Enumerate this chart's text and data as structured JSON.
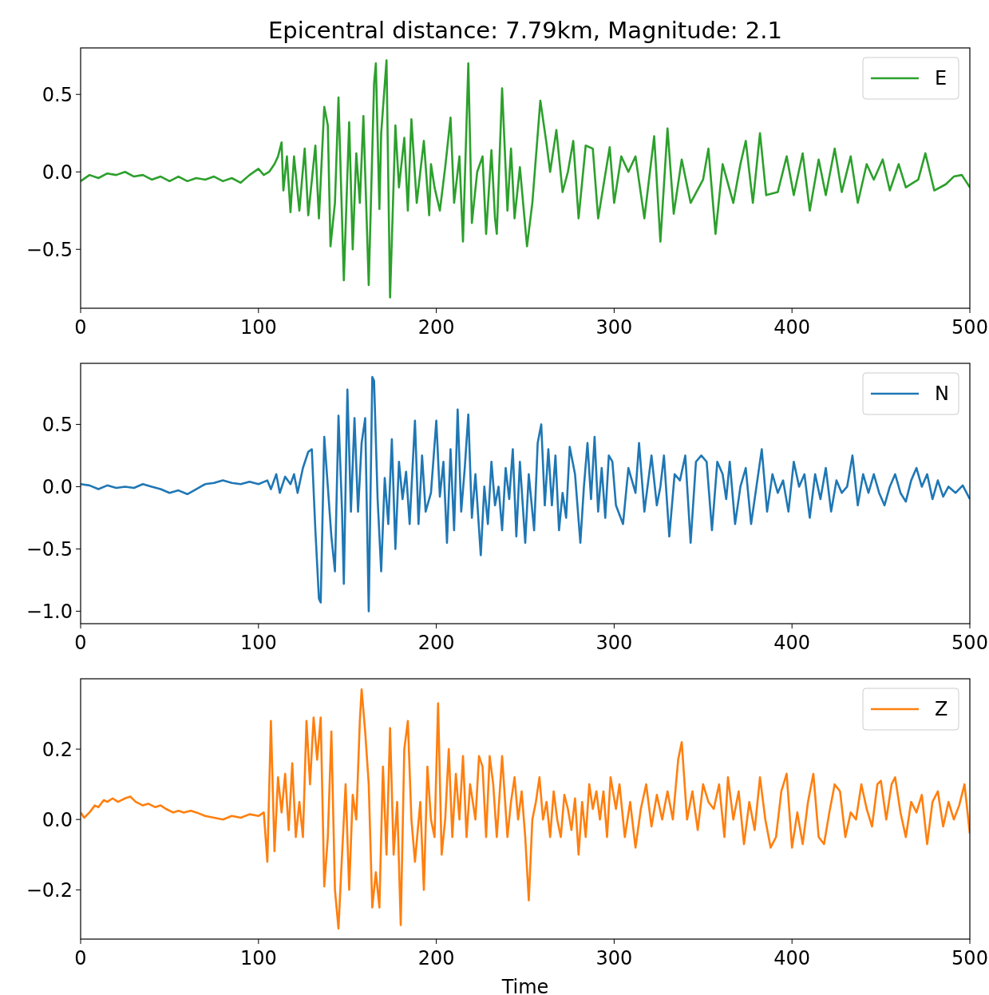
{
  "chart_data": [
    {
      "type": "line",
      "title": "Epicentral distance: 7.79km, Magnitude: 2.1",
      "xlim": [
        0,
        500
      ],
      "xticks": [
        0,
        100,
        200,
        300,
        400,
        500
      ],
      "ylim": [
        -0.88,
        0.8
      ],
      "yticks": [
        {
          "value": -0.5,
          "label": "−0.5"
        },
        {
          "value": 0,
          "label": "0.0"
        },
        {
          "value": 0.5,
          "label": "0.5"
        }
      ],
      "legend": "top right",
      "grid": false,
      "series": [
        {
          "name": "E",
          "color": "#2ca02c",
          "x": [
            0,
            5,
            10,
            15,
            20,
            25,
            30,
            35,
            40,
            45,
            50,
            55,
            60,
            65,
            70,
            75,
            80,
            85,
            90,
            95,
            100,
            103,
            106,
            109,
            111,
            113,
            114,
            116,
            118,
            120,
            123,
            126,
            128,
            132,
            134,
            137,
            139,
            140.5,
            143,
            145,
            148,
            151,
            153,
            155,
            157,
            159,
            162,
            165,
            166,
            168,
            169,
            172,
            174,
            177,
            179,
            182,
            184,
            186,
            189,
            193,
            196,
            197,
            199,
            202,
            205,
            208,
            210,
            213,
            215,
            218,
            220,
            223,
            226,
            228,
            231,
            233,
            234,
            237,
            240,
            242,
            244,
            247,
            251,
            254,
            258.5,
            262,
            264,
            267.5,
            271,
            274,
            277,
            280,
            284,
            288,
            291,
            297.5,
            300,
            304,
            308,
            312,
            317,
            322.5,
            326,
            330,
            333.5,
            338,
            343,
            350,
            353,
            357,
            361,
            367,
            371,
            374,
            378,
            382,
            385.5,
            392,
            397,
            401,
            406,
            410,
            415,
            419,
            424,
            428,
            433,
            437,
            442,
            446,
            451,
            455,
            460,
            464,
            471,
            475,
            480,
            486.5,
            491,
            495.5,
            500
          ],
          "values": [
            -0.06,
            -0.02,
            -0.04,
            -0.01,
            -0.02,
            0.0,
            -0.03,
            -0.02,
            -0.05,
            -0.03,
            -0.06,
            -0.03,
            -0.06,
            -0.04,
            -0.05,
            -0.03,
            -0.06,
            -0.04,
            -0.07,
            -0.02,
            0.02,
            -0.02,
            0.0,
            0.05,
            0.1,
            0.19,
            -0.12,
            0.1,
            -0.26,
            0.1,
            -0.25,
            0.15,
            -0.28,
            0.17,
            -0.3,
            0.42,
            0.3,
            -0.48,
            -0.2,
            0.48,
            -0.7,
            0.32,
            -0.5,
            0.12,
            -0.2,
            0.36,
            -0.73,
            0.57,
            0.7,
            -0.24,
            0.25,
            0.72,
            -0.81,
            0.3,
            -0.1,
            0.22,
            -0.25,
            0.34,
            -0.2,
            0.2,
            -0.28,
            0.05,
            -0.1,
            -0.25,
            0.03,
            0.35,
            -0.2,
            0.1,
            -0.45,
            0.7,
            -0.33,
            0.0,
            0.1,
            -0.4,
            0.14,
            -0.3,
            -0.4,
            0.54,
            -0.25,
            0.15,
            -0.3,
            0.03,
            -0.48,
            -0.2,
            0.46,
            0.18,
            0.0,
            0.27,
            -0.13,
            0.0,
            0.2,
            -0.3,
            0.17,
            0.15,
            -0.3,
            0.16,
            -0.2,
            0.1,
            0.0,
            0.1,
            -0.3,
            0.23,
            -0.45,
            0.28,
            -0.27,
            0.08,
            -0.2,
            -0.05,
            0.15,
            -0.4,
            0.05,
            -0.2,
            0.05,
            0.2,
            -0.2,
            0.25,
            -0.15,
            -0.13,
            0.1,
            -0.15,
            0.12,
            -0.25,
            0.08,
            -0.15,
            0.15,
            -0.13,
            0.1,
            -0.2,
            0.05,
            -0.05,
            0.08,
            -0.12,
            0.05,
            -0.1,
            -0.05,
            0.12,
            -0.12,
            -0.08,
            -0.03,
            -0.02,
            -0.1
          ]
        }
      ]
    },
    {
      "type": "line",
      "xlim": [
        0,
        500
      ],
      "xticks": [
        0,
        100,
        200,
        300,
        400,
        500
      ],
      "ylim": [
        -1.1,
        0.99
      ],
      "yticks": [
        {
          "value": -1,
          "label": "−1.0"
        },
        {
          "value": -0.5,
          "label": "−0.5"
        },
        {
          "value": 0,
          "label": "0.0"
        },
        {
          "value": 0.5,
          "label": "0.5"
        }
      ],
      "legend": "top right",
      "grid": false,
      "series": [
        {
          "name": "N",
          "color": "#1f77b4",
          "x": [
            0,
            5,
            10,
            15,
            20,
            25,
            30,
            35,
            40,
            45,
            50,
            55,
            60,
            65,
            70,
            75,
            80,
            85,
            90,
            95,
            100,
            105,
            107,
            110,
            112,
            115,
            118,
            120,
            122,
            125,
            128,
            130,
            132,
            134,
            135,
            137,
            139,
            141,
            143,
            145,
            147,
            148,
            150,
            152,
            154,
            156,
            158,
            160,
            162,
            164,
            165,
            167,
            169,
            171,
            173,
            175,
            177,
            179,
            181,
            183,
            185,
            188,
            190,
            192,
            194,
            197,
            200,
            202,
            204,
            206,
            208,
            210,
            212,
            214,
            216,
            218,
            220,
            222,
            225,
            227,
            229,
            231,
            233,
            235,
            237,
            239,
            241,
            243,
            245,
            247,
            250,
            252,
            255,
            257,
            259,
            261,
            263,
            265,
            267,
            269,
            271,
            273,
            275,
            278,
            281,
            283,
            285,
            287,
            289,
            291,
            293,
            295,
            297,
            299,
            301,
            305,
            308,
            312,
            314,
            317,
            321,
            324,
            326,
            328,
            331,
            334,
            337,
            340,
            343,
            346,
            349,
            352,
            355,
            358,
            361,
            363,
            365,
            368,
            371,
            374,
            377,
            380,
            383,
            386,
            389,
            392,
            395,
            398,
            401,
            404,
            407,
            410,
            413,
            416,
            419,
            422,
            425,
            428,
            431,
            434,
            437,
            440,
            443,
            446,
            449,
            452,
            455,
            458,
            461,
            464,
            467,
            470,
            473,
            476,
            479,
            482,
            485,
            488,
            492,
            496,
            500
          ],
          "values": [
            0.02,
            0.01,
            -0.02,
            0.01,
            -0.01,
            0.0,
            -0.01,
            0.02,
            0.0,
            -0.02,
            -0.05,
            -0.03,
            -0.06,
            -0.02,
            0.02,
            0.03,
            0.05,
            0.03,
            0.02,
            0.04,
            0.02,
            0.05,
            -0.02,
            0.1,
            -0.05,
            0.08,
            0.02,
            0.1,
            -0.05,
            0.15,
            0.28,
            0.3,
            -0.35,
            -0.9,
            -0.93,
            0.4,
            0.0,
            -0.4,
            -0.68,
            0.57,
            -0.2,
            -0.78,
            0.78,
            -0.2,
            0.55,
            -0.2,
            0.35,
            0.55,
            -1.0,
            0.88,
            0.85,
            -0.1,
            -0.68,
            0.07,
            -0.3,
            0.38,
            -0.5,
            0.2,
            -0.1,
            0.12,
            -0.3,
            0.53,
            -0.3,
            0.25,
            -0.2,
            -0.05,
            0.53,
            -0.08,
            0.2,
            -0.45,
            0.3,
            -0.35,
            0.62,
            -0.2,
            0.15,
            0.58,
            -0.25,
            0.1,
            -0.55,
            0.0,
            -0.3,
            0.2,
            -0.15,
            0.0,
            -0.35,
            0.15,
            -0.1,
            0.3,
            -0.4,
            0.2,
            -0.45,
            0.1,
            -0.35,
            0.35,
            0.5,
            -0.15,
            0.3,
            -0.15,
            0.25,
            -0.35,
            -0.05,
            -0.25,
            0.32,
            0.1,
            -0.45,
            0.0,
            0.35,
            -0.1,
            0.4,
            -0.2,
            0.15,
            -0.25,
            0.25,
            0.2,
            -0.15,
            -0.3,
            0.15,
            -0.05,
            0.35,
            -0.2,
            0.25,
            -0.15,
            0.0,
            0.25,
            -0.4,
            0.1,
            0.05,
            0.25,
            -0.45,
            0.2,
            0.25,
            0.2,
            -0.35,
            0.2,
            0.1,
            -0.1,
            0.2,
            -0.3,
            0.0,
            0.15,
            -0.3,
            0.0,
            0.3,
            -0.2,
            0.1,
            -0.05,
            0.05,
            -0.2,
            0.2,
            0.0,
            0.1,
            -0.25,
            0.1,
            -0.1,
            0.15,
            -0.2,
            0.05,
            -0.05,
            0.0,
            0.25,
            -0.15,
            0.1,
            -0.05,
            0.1,
            -0.05,
            -0.15,
            0.0,
            0.1,
            -0.05,
            -0.12,
            0.05,
            0.15,
            0.0,
            0.1,
            -0.1,
            0.05,
            -0.08,
            0.0,
            -0.05,
            0.01,
            -0.1
          ]
        }
      ]
    },
    {
      "type": "line",
      "xlabel": "Time",
      "xlim": [
        0,
        500
      ],
      "xticks": [
        0,
        100,
        200,
        300,
        400,
        500
      ],
      "ylim": [
        -0.34,
        0.4
      ],
      "yticks": [
        {
          "value": -0.2,
          "label": "−0.2"
        },
        {
          "value": 0,
          "label": "0.0"
        },
        {
          "value": 0.2,
          "label": "0.2"
        }
      ],
      "legend": "top right",
      "grid": false,
      "series": [
        {
          "name": "Z",
          "color": "#ff7f0e",
          "x": [
            0,
            2,
            5,
            8,
            10,
            13,
            15,
            18,
            21,
            25,
            28,
            31,
            35,
            38,
            42,
            45,
            48,
            52,
            55,
            58,
            62,
            65,
            70,
            75,
            80,
            85,
            90,
            95,
            100,
            103,
            105,
            107,
            109,
            111,
            113,
            115,
            117,
            119,
            121,
            123,
            125,
            127,
            129,
            131,
            133,
            135,
            137,
            139,
            141,
            143,
            145,
            147,
            149,
            151,
            153,
            155,
            157,
            158,
            160,
            162,
            164,
            166,
            168,
            170,
            172,
            174,
            176,
            178,
            180,
            182,
            184,
            186,
            188,
            191,
            193,
            195,
            197,
            199,
            201,
            203,
            205,
            207,
            209,
            211,
            213,
            215,
            217,
            219,
            222,
            224,
            226,
            228,
            230,
            232,
            234,
            237,
            240,
            242,
            244,
            246,
            248,
            250,
            252,
            254,
            256,
            258,
            260,
            262,
            264,
            266,
            268,
            270,
            272,
            274,
            276,
            278,
            280,
            282,
            284,
            286,
            288,
            290,
            292,
            294,
            296,
            298,
            301,
            303,
            306,
            309,
            312,
            315,
            318,
            321,
            324,
            327,
            330,
            333,
            336,
            338,
            341,
            344,
            347,
            350,
            353,
            356,
            359,
            362,
            364,
            367,
            370,
            373,
            376,
            379,
            382,
            385,
            388,
            391,
            394,
            397,
            400,
            403,
            406,
            409,
            412,
            415,
            418,
            421,
            424,
            427,
            430,
            433,
            436,
            439,
            442,
            445,
            448,
            450,
            453,
            456,
            458,
            461,
            464,
            467,
            470,
            473,
            476,
            479,
            482,
            485,
            488,
            491,
            494,
            497,
            500
          ],
          "values": [
            0.02,
            0.005,
            0.02,
            0.04,
            0.035,
            0.055,
            0.05,
            0.06,
            0.05,
            0.06,
            0.065,
            0.05,
            0.04,
            0.045,
            0.035,
            0.04,
            0.03,
            0.02,
            0.025,
            0.02,
            0.025,
            0.02,
            0.01,
            0.005,
            0.0,
            0.01,
            0.005,
            0.015,
            0.01,
            0.02,
            -0.12,
            0.28,
            -0.09,
            0.12,
            0.02,
            0.13,
            -0.03,
            0.16,
            -0.05,
            0.05,
            -0.05,
            0.28,
            0.1,
            0.29,
            0.17,
            0.29,
            -0.19,
            -0.05,
            0.25,
            -0.2,
            -0.31,
            -0.1,
            0.1,
            -0.2,
            0.07,
            0.0,
            0.28,
            0.37,
            0.25,
            0.1,
            -0.25,
            -0.15,
            -0.25,
            0.15,
            -0.1,
            0.26,
            -0.1,
            0.05,
            -0.3,
            0.2,
            0.28,
            0.0,
            -0.12,
            0.05,
            -0.2,
            0.15,
            0.0,
            -0.05,
            0.33,
            -0.1,
            0.0,
            0.2,
            -0.05,
            0.13,
            0.0,
            0.18,
            -0.05,
            0.1,
            0.0,
            0.18,
            0.15,
            -0.05,
            0.18,
            0.1,
            -0.05,
            0.18,
            -0.05,
            0.05,
            0.12,
            0.0,
            0.08,
            -0.05,
            -0.23,
            0.0,
            0.05,
            0.12,
            0.0,
            0.05,
            -0.05,
            0.08,
            0.0,
            -0.05,
            0.07,
            0.03,
            -0.03,
            0.06,
            -0.1,
            0.05,
            -0.05,
            0.1,
            0.03,
            0.08,
            0.0,
            0.08,
            -0.05,
            0.12,
            0.03,
            0.1,
            -0.05,
            0.05,
            -0.08,
            0.03,
            0.1,
            -0.02,
            0.07,
            0.0,
            0.08,
            0.0,
            0.17,
            0.22,
            0.0,
            0.08,
            -0.03,
            0.1,
            0.05,
            0.03,
            0.1,
            -0.05,
            0.12,
            0.0,
            0.08,
            -0.07,
            0.05,
            -0.03,
            0.12,
            0.0,
            -0.08,
            -0.05,
            0.08,
            0.13,
            -0.08,
            0.02,
            -0.07,
            0.05,
            0.13,
            -0.05,
            -0.07,
            0.02,
            0.1,
            0.08,
            -0.05,
            0.02,
            0.0,
            0.1,
            0.03,
            -0.02,
            0.1,
            0.11,
            0.0,
            0.1,
            0.12,
            0.02,
            -0.05,
            0.05,
            0.02,
            0.07,
            -0.07,
            0.05,
            0.08,
            -0.02,
            0.05,
            0.0,
            0.04,
            0.1,
            -0.04
          ]
        }
      ]
    }
  ]
}
